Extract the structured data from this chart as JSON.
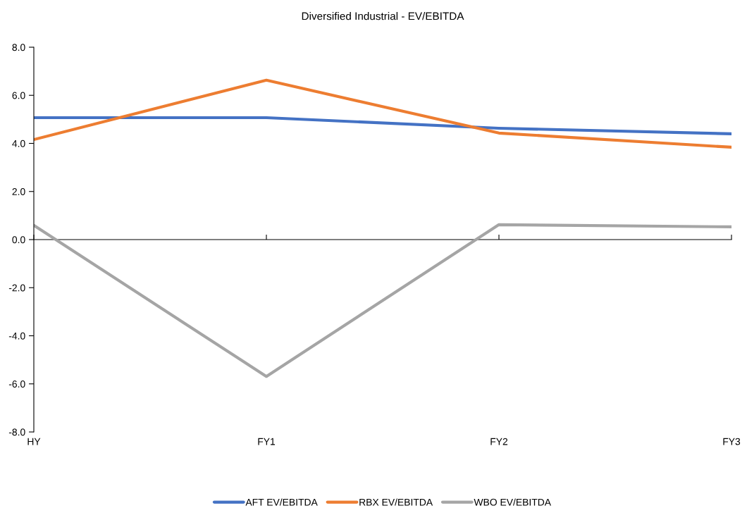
{
  "chart_data": {
    "type": "line",
    "title": "Diversified Industrial - EV/EBITDA",
    "categories": [
      "HY",
      "FY1",
      "FY2",
      "FY3"
    ],
    "series": [
      {
        "name": "AFT EV/EBITDA",
        "color": "#4472c4",
        "values": [
          5.07,
          5.07,
          4.63,
          4.4
        ]
      },
      {
        "name": "RBX EV/EBITDA",
        "color": "#ed7d31",
        "values": [
          4.16,
          6.63,
          4.43,
          3.84
        ]
      },
      {
        "name": "WBO EV/EBITDA",
        "color": "#a5a5a5",
        "values": [
          0.59,
          -5.69,
          0.62,
          0.53
        ]
      }
    ],
    "ylim": [
      -8,
      8
    ],
    "yticks": [
      {
        "value": -8,
        "label": "-8.0"
      },
      {
        "value": -6,
        "label": "-6.0"
      },
      {
        "value": -4,
        "label": "-4.0"
      },
      {
        "value": -2,
        "label": "-2.0"
      },
      {
        "value": 0,
        "label": "0.0"
      },
      {
        "value": 2,
        "label": "2.0"
      },
      {
        "value": 4,
        "label": "4.0"
      },
      {
        "value": 6,
        "label": "6.0"
      },
      {
        "value": 8,
        "label": "8.0"
      }
    ],
    "legend": "bottom",
    "marker": "none",
    "line_style": "solid"
  }
}
